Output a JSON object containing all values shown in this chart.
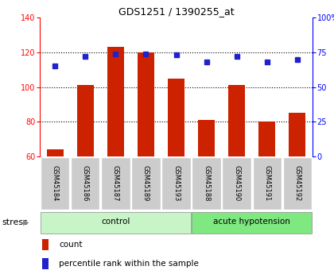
{
  "title": "GDS1251 / 1390255_at",
  "samples": [
    "GSM45184",
    "GSM45186",
    "GSM45187",
    "GSM45189",
    "GSM45193",
    "GSM45188",
    "GSM45190",
    "GSM45191",
    "GSM45192"
  ],
  "count_values": [
    64,
    101,
    123,
    120,
    105,
    81,
    101,
    80,
    85
  ],
  "percentile_values": [
    65,
    72,
    74,
    74,
    73,
    68,
    72,
    68,
    70
  ],
  "ylim_left": [
    60,
    140
  ],
  "ylim_right": [
    0,
    100
  ],
  "yticks_left": [
    60,
    80,
    100,
    120,
    140
  ],
  "yticks_right": [
    0,
    25,
    50,
    75,
    100
  ],
  "groups": [
    {
      "label": "control",
      "start": 0,
      "end": 4,
      "color": "#c8f5c8"
    },
    {
      "label": "acute hypotension",
      "start": 5,
      "end": 8,
      "color": "#80e880"
    }
  ],
  "bar_color": "#cc2200",
  "dot_color": "#2222cc",
  "bar_width": 0.55,
  "stress_label": "stress",
  "count_label": "count",
  "percentile_label": "percentile rank within the sample",
  "background_color": "#ffffff",
  "xticklabel_bg": "#cccccc",
  "title_color": "black",
  "title_fontsize": 9
}
